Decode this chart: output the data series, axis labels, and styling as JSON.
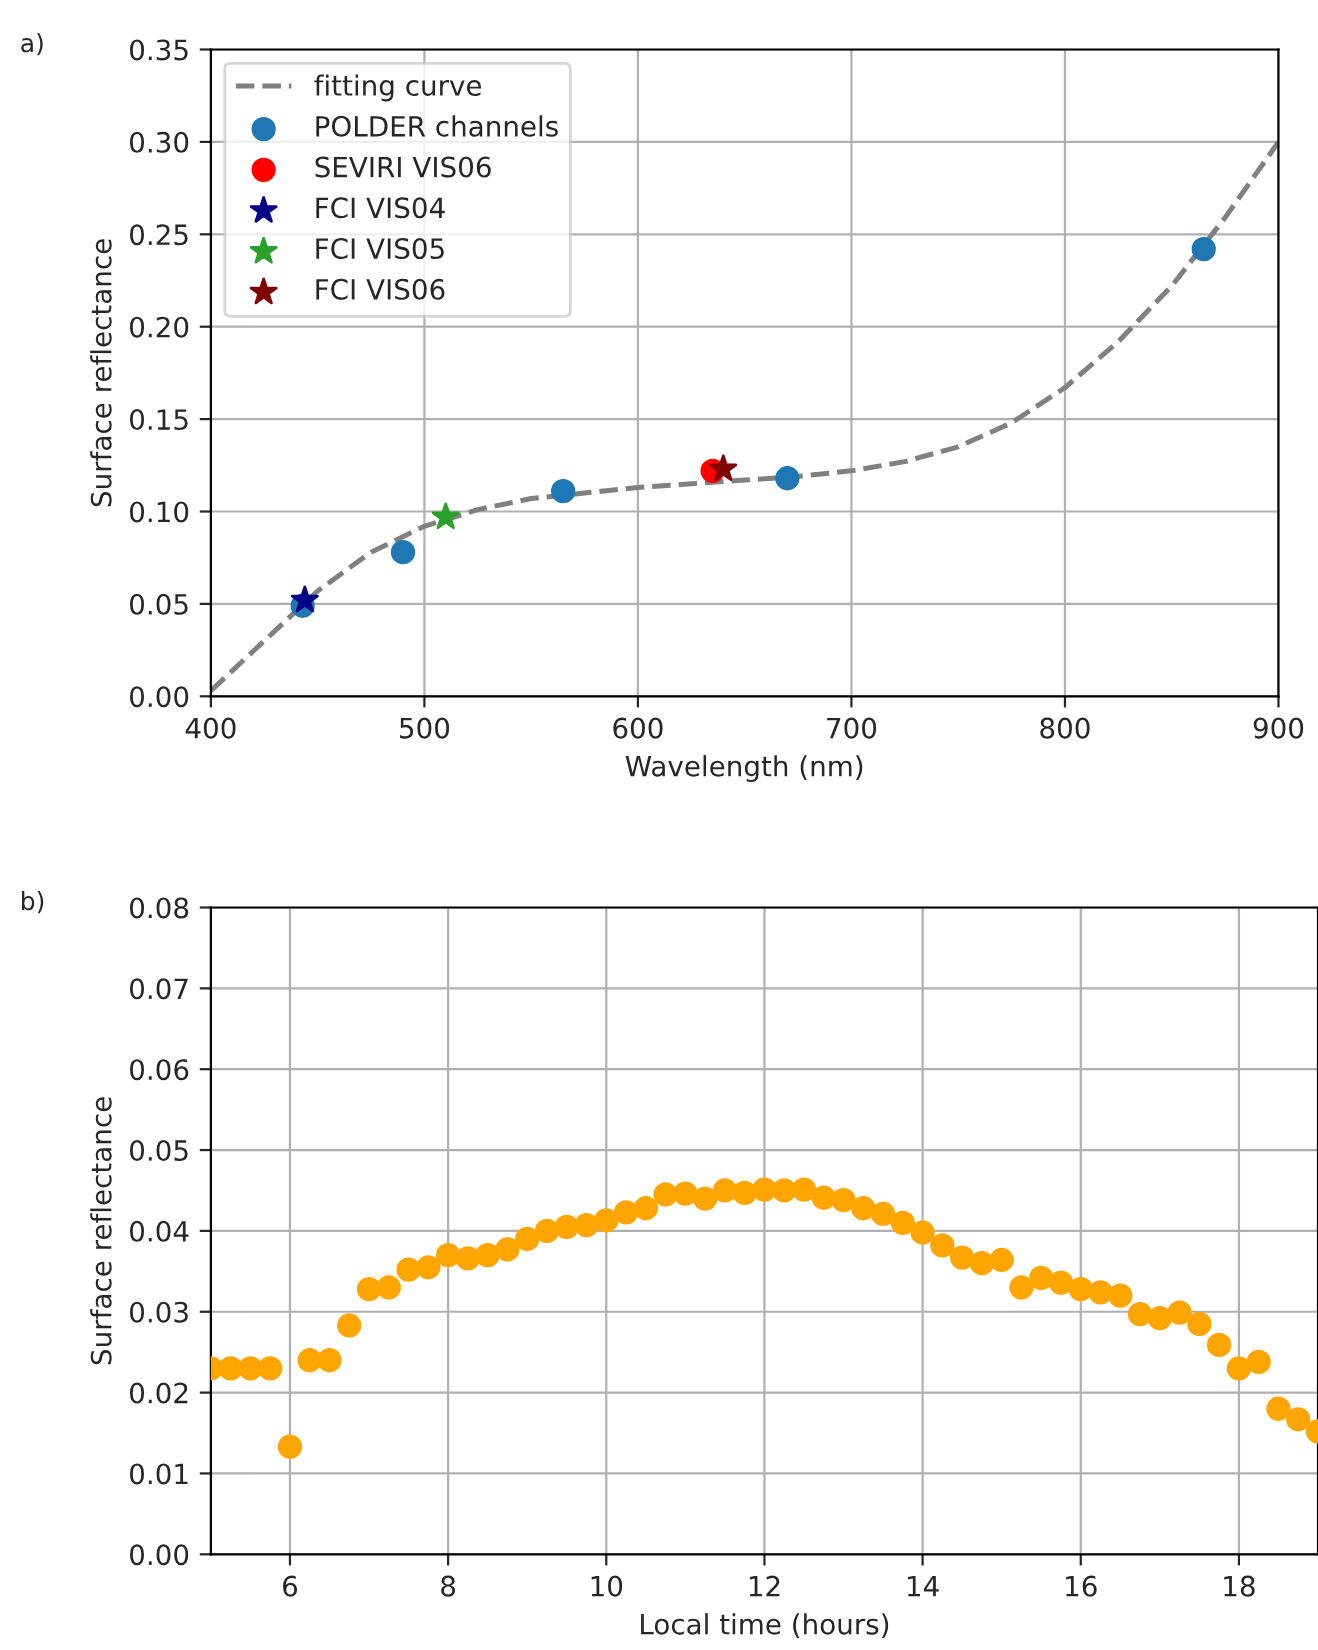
{
  "chart_data": [
    {
      "type": "scatter",
      "xlabel": "Wavelength (nm)",
      "ylabel": "Surface reflectance",
      "annotations": [
        "a)"
      ],
      "xlim": [
        400,
        900
      ],
      "ylim": [
        0,
        0.35
      ],
      "xticks": [
        400,
        500,
        600,
        700,
        800,
        900
      ],
      "yticks": [
        {
          "value": 0,
          "label": "0.00"
        },
        {
          "value": 0.05,
          "label": "0.05"
        },
        {
          "value": 0.1,
          "label": "0.10"
        },
        {
          "value": 0.15,
          "label": "0.15"
        },
        {
          "value": 0.2,
          "label": "0.20"
        },
        {
          "value": 0.25,
          "label": "0.25"
        },
        {
          "value": 0.3,
          "label": "0.30"
        },
        {
          "value": 0.35,
          "label": "0.35"
        }
      ],
      "grid": true,
      "legend": "top left",
      "series": [
        {
          "type": "line",
          "name": "fitting curve",
          "color": "#808080",
          "line_style": "dashed",
          "marker": "none",
          "x": [
            400,
            425,
            450,
            475,
            500,
            525,
            550,
            575,
            600,
            625,
            650,
            675,
            700,
            725,
            750,
            775,
            800,
            825,
            850,
            875,
            900
          ],
          "values": [
            0.003,
            0.03,
            0.057,
            0.078,
            0.092,
            0.101,
            0.107,
            0.11,
            0.113,
            0.115,
            0.117,
            0.119,
            0.122,
            0.127,
            0.135,
            0.148,
            0.167,
            0.192,
            0.222,
            0.259,
            0.3
          ]
        },
        {
          "name": "POLDER channels",
          "color": "#1f77b4",
          "marker": "circle",
          "x": [
            443,
            490,
            565,
            670,
            865
          ],
          "values": [
            0.049,
            0.078,
            0.111,
            0.118,
            0.242
          ]
        },
        {
          "name": "SEVIRI VIS06",
          "color": "#ff0000",
          "marker": "circle",
          "x": [
            635
          ],
          "values": [
            0.122
          ]
        },
        {
          "name": "FCI VIS04",
          "color": "#00008b",
          "marker": "star",
          "x": [
            444
          ],
          "values": [
            0.052
          ]
        },
        {
          "name": "FCI VIS05",
          "color": "#2ca02c",
          "marker": "star",
          "x": [
            510
          ],
          "values": [
            0.097
          ]
        },
        {
          "name": "FCI VIS06",
          "color": "#800000",
          "marker": "star",
          "x": [
            640
          ],
          "values": [
            0.123
          ]
        }
      ]
    },
    {
      "type": "scatter",
      "xlabel": "Local time (hours)",
      "ylabel": "Surface reflectance",
      "annotations": [
        "b)"
      ],
      "xlim": [
        5,
        19
      ],
      "ylim": [
        0,
        0.08
      ],
      "xticks": [
        6,
        8,
        10,
        12,
        14,
        16,
        18
      ],
      "yticks": [
        {
          "value": 0,
          "label": "0.00"
        },
        {
          "value": 0.01,
          "label": "0.01"
        },
        {
          "value": 0.02,
          "label": "0.02"
        },
        {
          "value": 0.03,
          "label": "0.03"
        },
        {
          "value": 0.04,
          "label": "0.04"
        },
        {
          "value": 0.05,
          "label": "0.05"
        },
        {
          "value": 0.06,
          "label": "0.06"
        },
        {
          "value": 0.07,
          "label": "0.07"
        },
        {
          "value": 0.08,
          "label": "0.08"
        }
      ],
      "grid": true,
      "series": [
        {
          "color": "#ffa500",
          "marker": "circle",
          "x": [
            5,
            5.25,
            5.5,
            5.75,
            6,
            6.25,
            6.5,
            6.75,
            7,
            7.25,
            7.5,
            7.75,
            8,
            8.25,
            8.5,
            8.75,
            9,
            9.25,
            9.5,
            9.75,
            10,
            10.25,
            10.5,
            10.75,
            11,
            11.25,
            11.5,
            11.75,
            12,
            12.25,
            12.5,
            12.75,
            13,
            13.25,
            13.5,
            13.75,
            14,
            14.25,
            14.5,
            14.75,
            15,
            15.25,
            15.5,
            15.75,
            16,
            16.25,
            16.5,
            16.75,
            17,
            17.25,
            17.5,
            17.75,
            18,
            18.25,
            18.5,
            18.75,
            19
          ],
          "values": [
            0.023,
            0.023,
            0.023,
            0.023,
            0.0133,
            0.024,
            0.024,
            0.0283,
            0.0328,
            0.033,
            0.0352,
            0.0355,
            0.037,
            0.0366,
            0.037,
            0.0377,
            0.039,
            0.04,
            0.0405,
            0.0407,
            0.0413,
            0.0423,
            0.0428,
            0.0445,
            0.0446,
            0.044,
            0.045,
            0.0447,
            0.0451,
            0.045,
            0.0451,
            0.0441,
            0.0438,
            0.0428,
            0.0421,
            0.041,
            0.0398,
            0.0382,
            0.0367,
            0.036,
            0.0364,
            0.033,
            0.0342,
            0.0336,
            0.0328,
            0.0324,
            0.032,
            0.0297,
            0.0292,
            0.0299,
            0.0285,
            0.0259,
            0.023,
            0.0238,
            0.018,
            0.0167,
            0.0152
          ]
        }
      ]
    }
  ]
}
